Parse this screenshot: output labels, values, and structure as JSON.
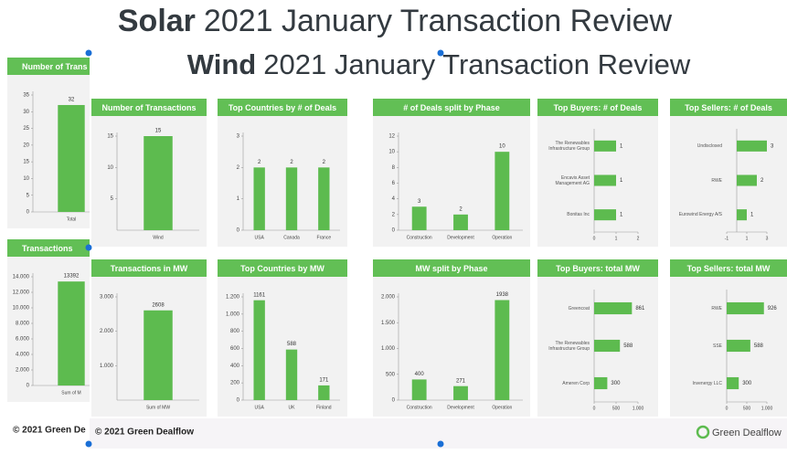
{
  "solar": {
    "title_bold": "Solar",
    "title_rest": "2021 January Transaction Review",
    "footer": "© 2021 Green De"
  },
  "wind": {
    "title_bold": "Wind",
    "title_rest": "2021 January Transaction Review",
    "footer": "© 2021 Green Dealflow",
    "logo": "Green Dealflow"
  },
  "chart_data": [
    {
      "type": "bar",
      "title": "Number of Trans",
      "categories": [
        "Total"
      ],
      "values": [
        32
      ],
      "color": "#5dbb4f",
      "ylim": [
        0,
        35
      ],
      "yticks": [
        0,
        5,
        10,
        15,
        20,
        25,
        30,
        35
      ]
    },
    {
      "type": "bar",
      "title": "Transactions",
      "categories": [
        "Sum of M"
      ],
      "values": [
        13392
      ],
      "color": "#5dbb4f",
      "ylim": [
        0,
        14000
      ],
      "yticks": [
        0,
        {
          "value": 2000,
          "label": "2.000"
        },
        {
          "value": 4000,
          "label": "4.000"
        },
        {
          "value": 6000,
          "label": "6.000"
        },
        {
          "value": 8000,
          "label": "8.000"
        },
        {
          "value": 10000,
          "label": "10.000"
        },
        {
          "value": 12000,
          "label": "12.000"
        },
        {
          "value": 14000,
          "label": "14.000"
        }
      ]
    },
    {
      "type": "bar",
      "title": "Number of Transactions",
      "categories": [
        "Wind"
      ],
      "values": [
        15
      ],
      "color": "#5dbb4f",
      "ylim": [
        0,
        15
      ],
      "yticks": [
        5,
        10,
        15
      ]
    },
    {
      "type": "bar",
      "title": "Top Countries by # of Deals",
      "categories": [
        "USA",
        "Canada",
        "France"
      ],
      "values": [
        2,
        2,
        2
      ],
      "color": "#5dbb4f",
      "ylim": [
        0,
        3
      ],
      "yticks": [
        0,
        1,
        2,
        3
      ]
    },
    {
      "type": "bar",
      "title": "# of Deals split by Phase",
      "categories": [
        "Construction",
        "Development",
        "Operation"
      ],
      "values": [
        3,
        2,
        10
      ],
      "color": "#5dbb4f",
      "ylim": [
        0,
        12
      ],
      "yticks": [
        0,
        2,
        4,
        6,
        8,
        10,
        12
      ]
    },
    {
      "type": "barh",
      "title": "Top Buyers: # of Deals",
      "categories": [
        "The Renewables Infrastructure Group",
        "Encavis Asset Management AG",
        "Bonitas Inc"
      ],
      "values": [
        1,
        1,
        1
      ],
      "color": "#5dbb4f",
      "xlim": [
        0,
        2
      ],
      "xticks": [
        0,
        1,
        2
      ]
    },
    {
      "type": "barh",
      "title": "Top Sellers: # of Deals",
      "categories": [
        "Undisclosed",
        "RWE",
        "Eurowind Energy A/S"
      ],
      "values": [
        3,
        2,
        1
      ],
      "color": "#5dbb4f",
      "xlim": [
        -1,
        3
      ],
      "xticks": [
        -1,
        1,
        3
      ]
    },
    {
      "type": "bar",
      "title": "Transactions in MW",
      "categories": [
        "Sum of MW"
      ],
      "values": [
        2608
      ],
      "color": "#5dbb4f",
      "ylim": [
        0,
        3000
      ],
      "yticks": [
        {
          "value": 1000,
          "label": "1.000"
        },
        {
          "value": 2000,
          "label": "2.000"
        },
        {
          "value": 3000,
          "label": "3.000"
        }
      ]
    },
    {
      "type": "bar",
      "title": "Top Countries by MW",
      "categories": [
        "USA",
        "UK",
        "Finland"
      ],
      "values": [
        1161,
        588,
        171
      ],
      "color": "#5dbb4f",
      "ylim": [
        0,
        1200
      ],
      "yticks": [
        0,
        200,
        400,
        600,
        800,
        {
          "value": 1000,
          "label": "1.000"
        },
        {
          "value": 1200,
          "label": "1.200"
        }
      ]
    },
    {
      "type": "bar",
      "title": "MW split by Phase",
      "categories": [
        "Construction",
        "Development",
        "Operation"
      ],
      "values": [
        400,
        271,
        1938
      ],
      "color": "#5dbb4f",
      "ylim": [
        0,
        2000
      ],
      "yticks": [
        0,
        500,
        {
          "value": 1000,
          "label": "1.000"
        },
        {
          "value": 1500,
          "label": "1.500"
        },
        {
          "value": 2000,
          "label": "2.000"
        }
      ]
    },
    {
      "type": "barh",
      "title": "Top Buyers: total MW",
      "categories": [
        "Greencoat",
        "The Renewables Infrastructure Group",
        "Ameren Corp"
      ],
      "values": [
        861,
        588,
        300
      ],
      "color": "#5dbb4f",
      "xlim": [
        0,
        1000
      ],
      "xticks": [
        0,
        500,
        {
          "value": 1000,
          "label": "1.000"
        }
      ]
    },
    {
      "type": "barh",
      "title": "Top Sellers: total MW",
      "categories": [
        "RWE",
        "SSE",
        "Invenergy LLC"
      ],
      "values": [
        926,
        588,
        300
      ],
      "color": "#5dbb4f",
      "xlim": [
        0,
        1000
      ],
      "xticks": [
        0,
        500,
        {
          "value": 1000,
          "label": "1.000"
        }
      ]
    }
  ]
}
